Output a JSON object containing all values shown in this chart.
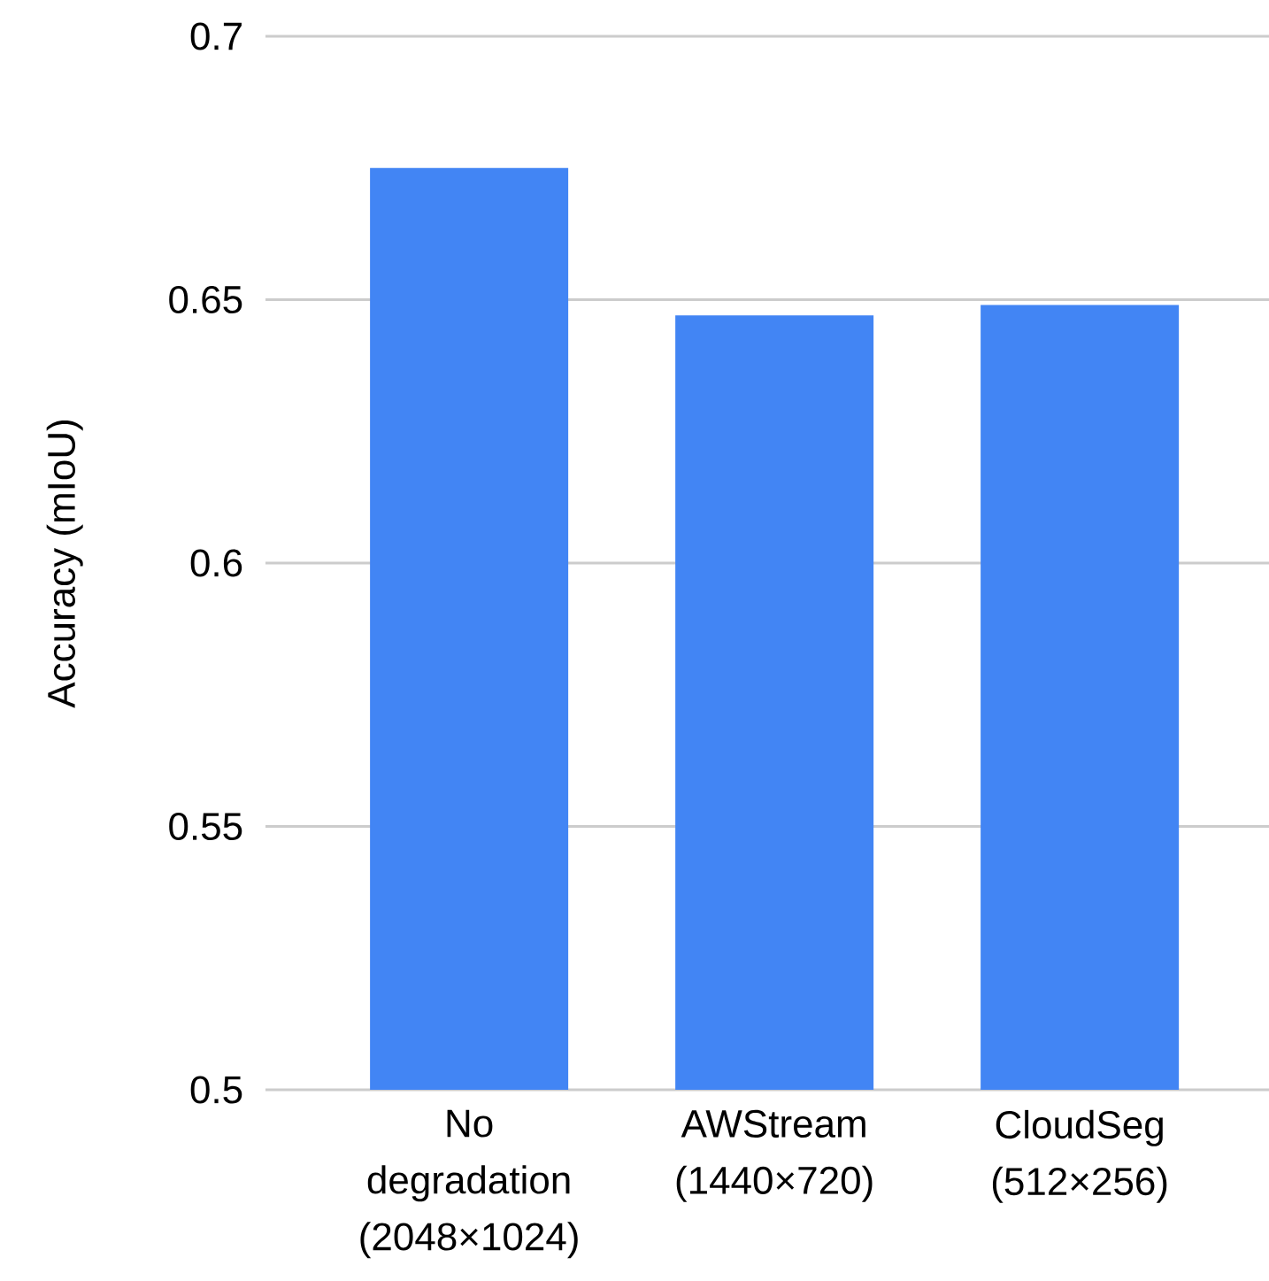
{
  "chart_data": {
    "type": "bar",
    "ylabel": "Accuracy (mIoU)",
    "categories": [
      "No degradation (2048×1024)",
      "AWStream (1440×720)",
      "CloudSeg (512×256)"
    ],
    "values": [
      0.675,
      0.647,
      0.649
    ],
    "color": "#4285f4",
    "ylim": [
      0.5,
      0.7
    ],
    "yticks": [
      0.5,
      0.55,
      0.6,
      0.65,
      0.7
    ],
    "grid": "y"
  }
}
